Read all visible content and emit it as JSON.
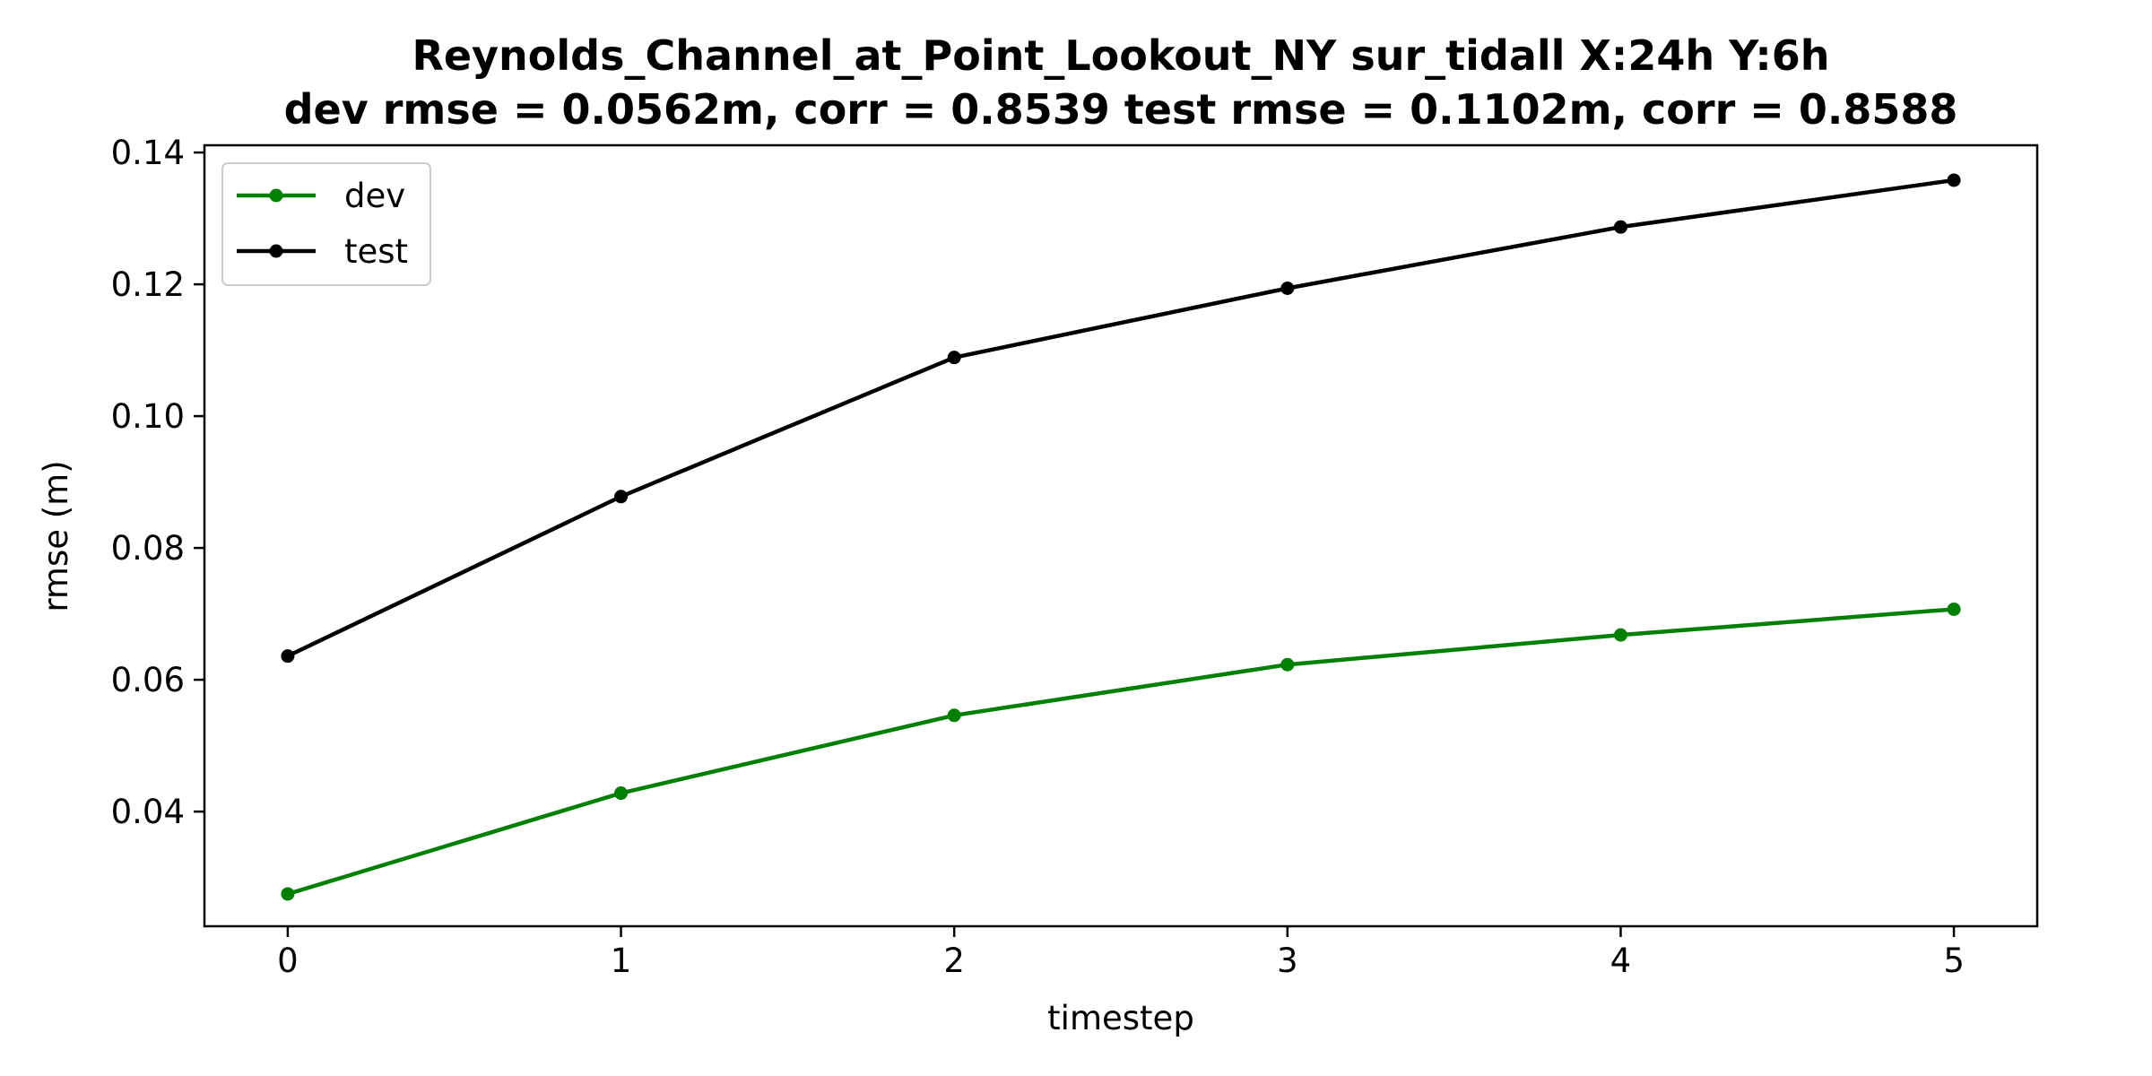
{
  "chart_data": {
    "type": "line",
    "title": "Reynolds_Channel_at_Point_Lookout_NY   sur_tidall   X:24h   Y:6h",
    "subtitle": "dev rmse = 0.0562m, corr = 0.8539   test rmse = 0.1102m, corr = 0.8588",
    "xlabel": "timestep",
    "ylabel": "rmse (m)",
    "x": [
      0,
      1,
      2,
      3,
      4,
      5
    ],
    "xlim": [
      -0.25,
      5.25
    ],
    "ylim": [
      0.0226,
      0.1411
    ],
    "xticks": [
      0,
      1,
      2,
      3,
      4,
      5
    ],
    "yticks": [
      0.04,
      0.06,
      0.08,
      0.1,
      0.12,
      0.14
    ],
    "ytick_labels": [
      "0.04",
      "0.06",
      "0.08",
      "0.10",
      "0.12",
      "0.14"
    ],
    "grid": false,
    "legend_position": "top-left",
    "series": [
      {
        "name": "dev",
        "color": "#008000",
        "values": [
          0.0275,
          0.0428,
          0.0546,
          0.0623,
          0.0668,
          0.0707
        ]
      },
      {
        "name": "test",
        "color": "#000000",
        "values": [
          0.0636,
          0.0878,
          0.1089,
          0.1194,
          0.1287,
          0.1358
        ]
      }
    ]
  }
}
